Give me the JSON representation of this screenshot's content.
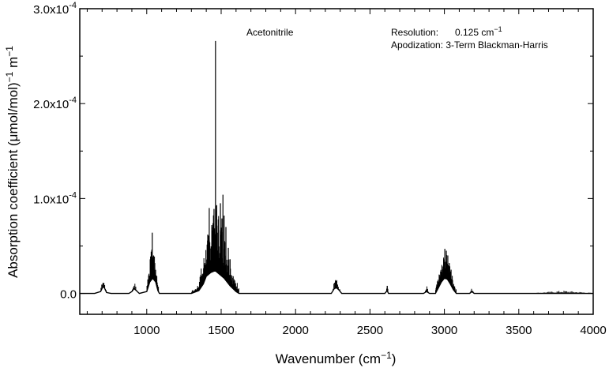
{
  "chart_data": {
    "type": "line",
    "xlabel_main": "Wavenumber (cm",
    "xlabel_sup": "−1",
    "xlabel_end": ")",
    "ylabel": {
      "part1": "Absorption coefficient (",
      "mu": "μ",
      "part2": "mol/mol)",
      "sup1": "−1",
      "part3": " m",
      "sup2": "−1"
    },
    "xlim": [
      550,
      4000
    ],
    "ylim": [
      -2.2e-05,
      0.0003
    ],
    "x_ticks": [
      1000,
      1500,
      2000,
      2500,
      3000,
      3500,
      4000
    ],
    "x_tick_labels": [
      "1000",
      "1500",
      "2000",
      "2500",
      "3000",
      "3500",
      "4000"
    ],
    "y_ticks": [
      {
        "value": 0,
        "base": "0.0",
        "exp": ""
      },
      {
        "value": 0.0001,
        "base": "1.0x10",
        "exp": "-4"
      },
      {
        "value": 0.0002,
        "base": "2.0x10",
        "exp": "-4"
      },
      {
        "value": 0.0003,
        "base": "3.0x10",
        "exp": "-4"
      }
    ],
    "grid": false,
    "legend": "none",
    "annotations": {
      "compound": "Acetonitrile",
      "resolution_label": "Resolution:",
      "resolution_value": "0.125 cm",
      "resolution_sup": "−1",
      "apodization": "Apodization: 3-Term Blackman-Harris"
    },
    "series": [
      {
        "envelope": [
          [
            550,
            0
          ],
          [
            650,
            0
          ],
          [
            690,
            2e-06
          ],
          [
            705,
            7e-06
          ],
          [
            715,
            6e-06
          ],
          [
            730,
            1e-06
          ],
          [
            760,
            0
          ],
          [
            880,
            0
          ],
          [
            900,
            2e-06
          ],
          [
            915,
            5e-06
          ],
          [
            930,
            3e-06
          ],
          [
            950,
            0
          ],
          [
            1000,
            2e-06
          ],
          [
            1020,
            1.2e-05
          ],
          [
            1040,
            1.6e-05
          ],
          [
            1060,
            1.2e-05
          ],
          [
            1075,
            3e-06
          ],
          [
            1085,
            0
          ],
          [
            1300,
            0
          ],
          [
            1350,
            3e-06
          ],
          [
            1380,
            1e-05
          ],
          [
            1400,
            1.8e-05
          ],
          [
            1430,
            2.2e-05
          ],
          [
            1460,
            2.4e-05
          ],
          [
            1490,
            2e-05
          ],
          [
            1520,
            1.6e-05
          ],
          [
            1560,
            8e-06
          ],
          [
            1600,
            2e-06
          ],
          [
            1620,
            0
          ],
          [
            2240,
            0
          ],
          [
            2260,
            5e-06
          ],
          [
            2275,
            6e-06
          ],
          [
            2290,
            4e-06
          ],
          [
            2310,
            0
          ],
          [
            2600,
            0
          ],
          [
            2615,
            3e-06
          ],
          [
            2625,
            0
          ],
          [
            2860,
            0
          ],
          [
            2880,
            2e-06
          ],
          [
            2900,
            0
          ],
          [
            2940,
            0
          ],
          [
            2960,
            6e-06
          ],
          [
            2980,
            1.2e-05
          ],
          [
            3000,
            1.6e-05
          ],
          [
            3020,
            1.5e-05
          ],
          [
            3040,
            1e-05
          ],
          [
            3060,
            4e-06
          ],
          [
            3080,
            0
          ],
          [
            3170,
            0
          ],
          [
            3185,
            2e-06
          ],
          [
            3200,
            0
          ],
          [
            4000,
            0
          ]
        ],
        "lines": [
          {
            "range": [
              690,
              730
            ],
            "count": 8,
            "max": 1.1e-05,
            "peak": 706
          },
          {
            "range": [
              900,
              935
            ],
            "count": 6,
            "max": 8e-06,
            "peak": 918
          },
          {
            "range": [
              1000,
              1080
            ],
            "count": 30,
            "max": 3.6e-05,
            "peak": 1038
          },
          {
            "range": [
              1300,
              1380
            ],
            "count": 20,
            "max": 2.2e-05,
            "peak": 1370
          },
          {
            "range": [
              1380,
              1620
            ],
            "count": 90,
            "max": 7.2e-05,
            "peak": 1470
          },
          {
            "range": [
              2250,
              2300
            ],
            "count": 10,
            "max": 1.3e-05,
            "peak": 2268
          },
          {
            "range": [
              2610,
              2622
            ],
            "count": 3,
            "max": 8e-06,
            "peak": 2616
          },
          {
            "range": [
              2870,
              2895
            ],
            "count": 5,
            "max": 6e-06,
            "peak": 2882
          },
          {
            "range": [
              2940,
              3080
            ],
            "count": 60,
            "max": 2.8e-05,
            "peak": 3010
          },
          {
            "range": [
              3170,
              3200
            ],
            "count": 6,
            "max": 4e-06,
            "peak": 3185
          },
          {
            "range": [
              3600,
              4000
            ],
            "count": 60,
            "max": 3e-06,
            "peak": 3800
          }
        ],
        "peaks": [
          [
            706,
            1.1e-05
          ],
          [
            1037,
            6.4e-05
          ],
          [
            1030,
            4.4e-05
          ],
          [
            1046,
            4e-05
          ],
          [
            1054,
            3.2e-05
          ],
          [
            1462,
            0.000266
          ],
          [
            1452,
            8.9e-05
          ],
          [
            1437,
            7.2e-05
          ],
          [
            1470,
            9.3e-05
          ],
          [
            1420,
            9e-05
          ],
          [
            1495,
            9.5e-05
          ],
          [
            1505,
            7.9e-05
          ],
          [
            1512,
            0.000104
          ],
          [
            1520,
            8.2e-05
          ],
          [
            1532,
            7e-05
          ],
          [
            1548,
            4.8e-05
          ],
          [
            1560,
            3.6e-05
          ],
          [
            1410,
            6.2e-05
          ],
          [
            1445,
            7.4e-05
          ],
          [
            2268,
            1.4e-05
          ],
          [
            2616,
            8e-06
          ],
          [
            3003,
            4.7e-05
          ],
          [
            3013,
            4.5e-05
          ],
          [
            3023,
            4e-05
          ],
          [
            2995,
            3.6e-05
          ],
          [
            3033,
            3.2e-05
          ],
          [
            2985,
            2.2e-05
          ],
          [
            3045,
            2.5e-05
          ]
        ]
      }
    ]
  }
}
